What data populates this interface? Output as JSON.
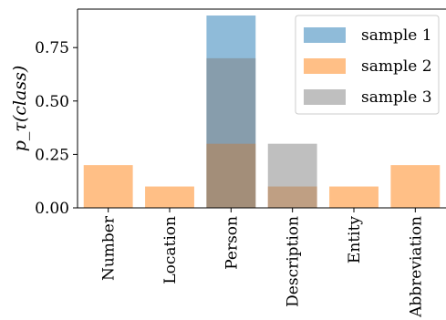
{
  "chart_data": {
    "type": "bar",
    "categories": [
      "Number",
      "Location",
      "Person",
      "Description",
      "Entity",
      "Abbreviation"
    ],
    "series": [
      {
        "name": "sample 1",
        "color": "#1f77b4",
        "opacity": 0.5,
        "values": [
          0,
          0,
          0.9,
          0,
          0,
          0
        ]
      },
      {
        "name": "sample 2",
        "color": "#ff7f0e",
        "opacity": 0.5,
        "values": [
          0.2,
          0.1,
          0.3,
          0.1,
          0.1,
          0.2
        ]
      },
      {
        "name": "sample 3",
        "color": "#7f7f7f",
        "opacity": 0.5,
        "values": [
          0,
          0,
          0.7,
          0.3,
          0,
          0
        ]
      }
    ],
    "ylabel": "p_τ(class)",
    "ylim": [
      0,
      0.93
    ],
    "yticks": [
      "0.00",
      "0.25",
      "0.50",
      "0.75"
    ],
    "legend_position": "top-right",
    "grid": false
  }
}
